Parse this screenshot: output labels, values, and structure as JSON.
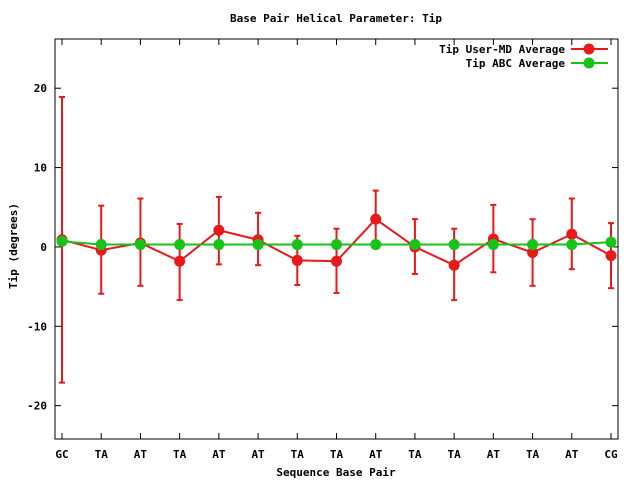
{
  "chart_data": {
    "type": "line",
    "title": "Base Pair Helical Parameter: Tip",
    "xlabel": "Sequence Base Pair",
    "ylabel": "Tip (degrees)",
    "categories": [
      "GC",
      "TA",
      "AT",
      "TA",
      "AT",
      "AT",
      "TA",
      "TA",
      "AT",
      "TA",
      "TA",
      "AT",
      "TA",
      "AT",
      "CG"
    ],
    "ylim": [
      -24.2,
      26.2
    ],
    "yticks": [
      -20,
      -10,
      0,
      10,
      20
    ],
    "grid": false,
    "legend_position": "top-right",
    "series": [
      {
        "name": "Tip User-MD Average",
        "color": "#e8191b",
        "values": [
          0.9,
          -0.4,
          0.5,
          -1.8,
          2.1,
          0.9,
          -1.7,
          -1.8,
          3.5,
          0.0,
          -2.3,
          1.0,
          -0.7,
          1.6,
          -1.1
        ],
        "error_low": [
          -17.1,
          -5.9,
          -4.9,
          -6.7,
          -2.2,
          -2.3,
          -4.8,
          -5.8,
          0.3,
          -3.4,
          -6.7,
          -3.2,
          -4.9,
          -2.8,
          -5.2
        ],
        "error_high": [
          18.9,
          5.2,
          6.1,
          2.9,
          6.3,
          4.3,
          1.4,
          2.3,
          7.1,
          3.5,
          2.3,
          5.3,
          3.5,
          6.1,
          3.0
        ]
      },
      {
        "name": "Tip ABC Average",
        "color": "#19c219",
        "values": [
          0.7,
          0.3,
          0.3,
          0.3,
          0.3,
          0.3,
          0.3,
          0.3,
          0.3,
          0.3,
          0.3,
          0.3,
          0.3,
          0.3,
          0.6
        ]
      }
    ]
  }
}
